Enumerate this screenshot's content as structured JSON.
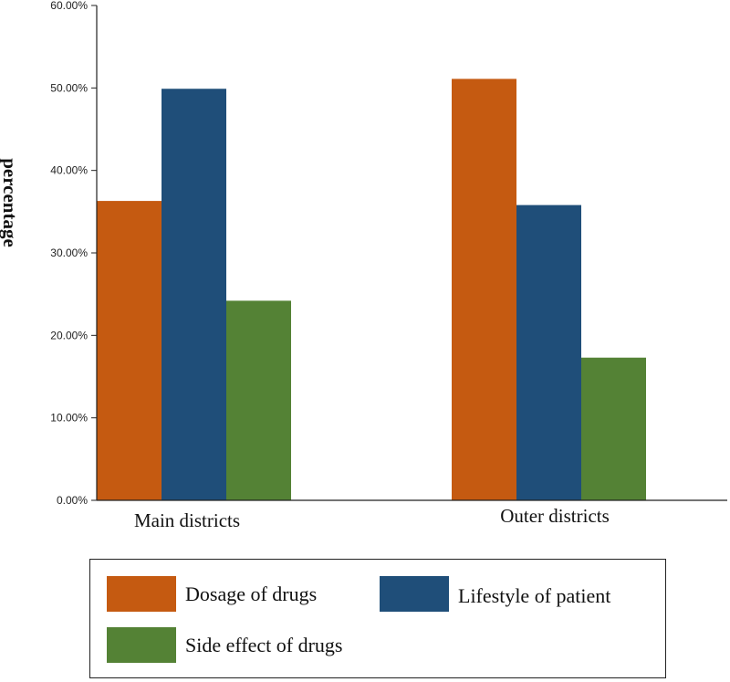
{
  "chart_data": {
    "type": "bar",
    "title": "",
    "xlabel": "",
    "ylabel": "percentage",
    "ylim": [
      0,
      60
    ],
    "y_ticks": [
      0,
      10,
      20,
      30,
      40,
      50,
      60
    ],
    "y_tick_labels": [
      "0.00%",
      "10.00%",
      "20.00%",
      "30.00%",
      "40.00%",
      "50.00%",
      "60.00%"
    ],
    "categories": [
      "Main districts",
      "Outer districts"
    ],
    "series": [
      {
        "name": "Dosage of drugs",
        "color": "#c55a11",
        "values": [
          36.3,
          51.1
        ]
      },
      {
        "name": "Lifestyle of patient",
        "color": "#1f4e79",
        "values": [
          49.9,
          35.8
        ]
      },
      {
        "name": "Side effect of drugs",
        "color": "#548235",
        "values": [
          24.2,
          17.3
        ]
      }
    ],
    "legend_position": "bottom",
    "grid": false
  }
}
